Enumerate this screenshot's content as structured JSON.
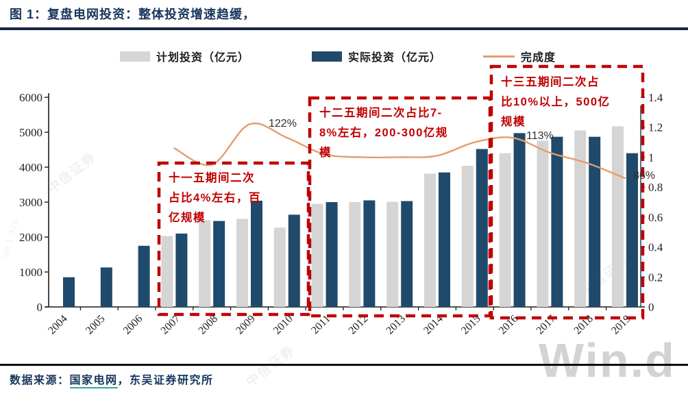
{
  "figure": {
    "title": "图 1：复盘电网投资：整体投资增速趋缓，",
    "source_prefix": "数据来源：",
    "source_link": "国家电网",
    "source_rest": "，东吴证券研究所",
    "corner_watermark": "Win.d",
    "diagonal_watermark": "中信证券",
    "edge_digits": "90.1.929"
  },
  "chart_data": {
    "type": "bar",
    "subtype": "grouped-bar-with-line",
    "title": "复盘电网投资：整体投资增速趋缓",
    "categories": [
      "2004",
      "2005",
      "2006",
      "2007",
      "2008",
      "2009",
      "2010",
      "2011",
      "2012",
      "2013",
      "2014",
      "2015",
      "2016",
      "2017",
      "2018",
      "2019"
    ],
    "series": [
      {
        "name": "计划投资（亿元）",
        "type": "bar",
        "axis": "left",
        "color": "#D5D5D5",
        "values": [
          null,
          null,
          null,
          2030,
          2480,
          2520,
          2270,
          2950,
          3000,
          3010,
          3815,
          4040,
          4400,
          4760,
          5050,
          5170
        ]
      },
      {
        "name": "实际投资（亿元）",
        "type": "bar",
        "axis": "left",
        "color": "#204A6B",
        "values": [
          850,
          1130,
          1750,
          2100,
          2460,
          3040,
          2640,
          3000,
          3050,
          3030,
          3850,
          4520,
          4975,
          4870,
          4870,
          4400
        ]
      },
      {
        "name": "完成度",
        "type": "line",
        "axis": "right",
        "color": "#E59C6A",
        "values": [
          null,
          null,
          null,
          1.06,
          0.95,
          1.22,
          1.13,
          1.02,
          1.0,
          1.0,
          1.01,
          1.1,
          1.13,
          1.03,
          0.96,
          0.86
        ]
      }
    ],
    "left_axis": {
      "min": 0,
      "max": 6000,
      "step": 1000
    },
    "right_axis": {
      "min": 0,
      "max": 1.4,
      "step": 0.2
    },
    "grid": false,
    "legend_position": "top",
    "point_labels": [
      {
        "text": "122%",
        "category": "2009"
      },
      {
        "text": "113%",
        "category": "2016"
      },
      {
        "text": "86%",
        "category": "2019"
      }
    ],
    "callouts": [
      {
        "categories": "2007-2010",
        "color": "#C00000",
        "text": "十一五期间二次占比4%左右，百亿规模",
        "lines": [
          "十一五期间二次",
          "占比4%左右，百",
          "亿规模"
        ]
      },
      {
        "categories": "2011-2015",
        "color": "#C00000",
        "text": "十二五期间二次占比7-8%左右，200-300亿规模",
        "lines": [
          "十二五期间二次占比7-",
          "8%左右，200-300亿规",
          "模"
        ]
      },
      {
        "categories": "2016-2019",
        "color": "#C00000",
        "text": "十三五期间二次占比10%以上，500亿规模",
        "lines": [
          "十三五期间二次占",
          "比10%以上，500亿",
          "规模"
        ]
      }
    ]
  }
}
